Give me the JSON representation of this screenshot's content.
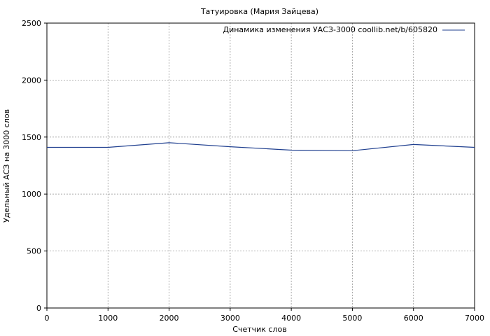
{
  "chart_data": {
    "type": "line",
    "title": "Татуировка (Мария Зайцева)",
    "xlabel": "Счетчик слов",
    "ylabel": "Удельный АСЗ на 3000 слов",
    "xlim": [
      0,
      7000
    ],
    "ylim": [
      0,
      2500
    ],
    "x_ticks": [
      0,
      1000,
      2000,
      3000,
      4000,
      5000,
      6000,
      7000
    ],
    "y_ticks": [
      0,
      500,
      1000,
      1500,
      2000,
      2500
    ],
    "x_tick_labels": [
      "0",
      "1000",
      "2000",
      "3000",
      "4000",
      "5000",
      "6000",
      "7000"
    ],
    "y_tick_labels": [
      "0",
      "500",
      "1000",
      "1500",
      "2000",
      "2500"
    ],
    "grid": true,
    "legend_position": "top-right",
    "series": [
      {
        "name": "Динамика изменения УАСЗ-3000 coollib.net/b/605820",
        "color": "#1f3f8f",
        "x": [
          0,
          1000,
          2000,
          3000,
          4000,
          5000,
          6000,
          7000
        ],
        "y": [
          1410,
          1410,
          1450,
          1415,
          1385,
          1380,
          1435,
          1410
        ]
      }
    ]
  }
}
